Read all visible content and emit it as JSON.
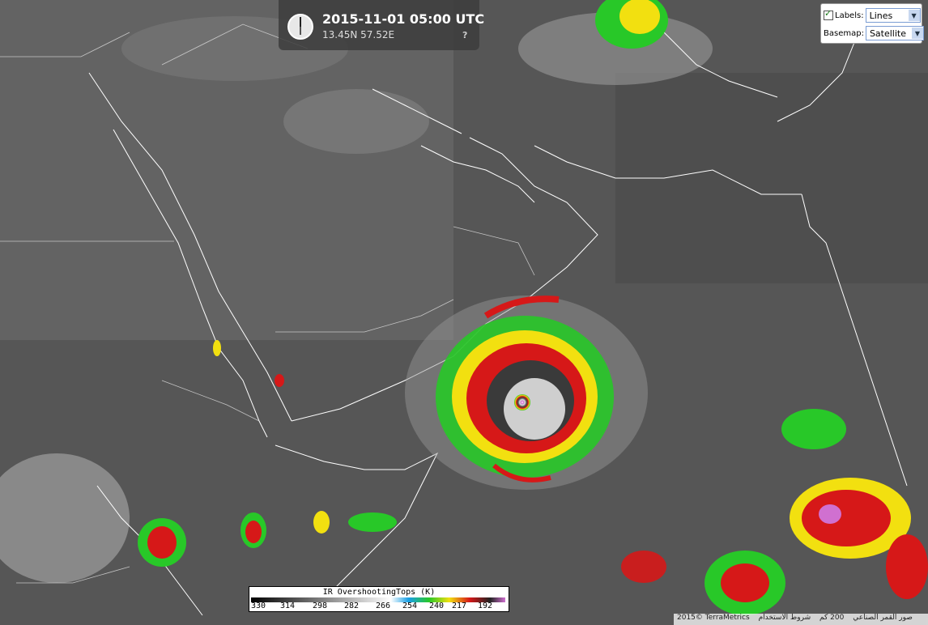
{
  "clock": {
    "datetime": "2015-11-01 05:00 UTC",
    "coordinates": "13.45N 57.52E",
    "help": "?"
  },
  "controls": {
    "labels_label": "Labels:",
    "labels_value": "Lines",
    "basemap_label": "Basemap:",
    "basemap_value": "Satellite"
  },
  "legend": {
    "title": "IR OvershootingTops (K)",
    "ticks": [
      "330",
      "314",
      "298",
      "282",
      "266",
      "254",
      "240",
      "217",
      "192"
    ]
  },
  "attribution": {
    "copyright": "2015© TerraMetrics",
    "imagery": "صور القمر الصناعي",
    "scale": "200 كم",
    "terms": "شروط الاستخدام"
  },
  "colors": {
    "cloud_gray": "#5a5a5a",
    "coast": "#ffffff",
    "cold_red": "#d61818",
    "cold_yellow": "#f2e010",
    "cold_green": "#28c828",
    "cold_blue": "#1aa0e6",
    "cold_magenta": "#d070d0"
  },
  "icons": {
    "clock": "clock-icon",
    "checkbox": "checkbox-checked-icon",
    "dropdown": "chevron-down-icon"
  }
}
